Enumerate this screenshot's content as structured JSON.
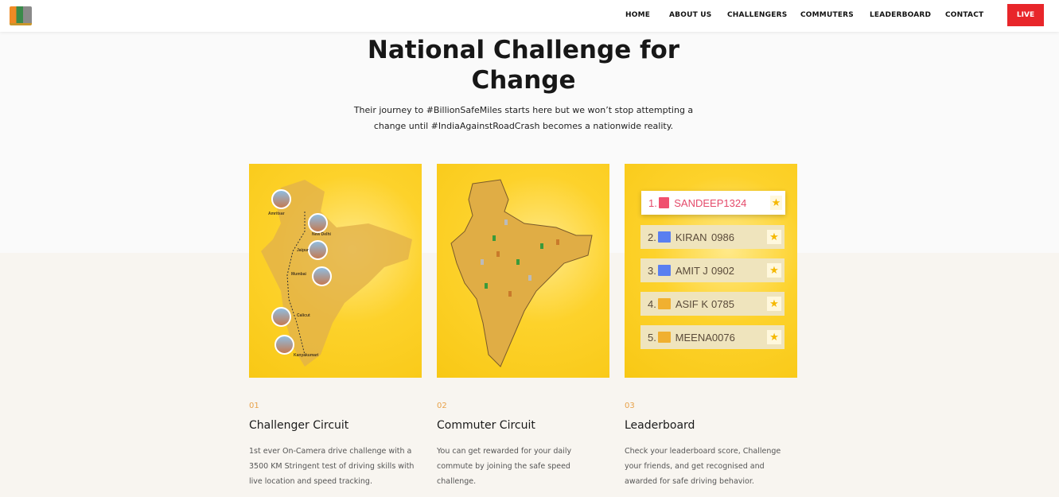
{
  "nav": {
    "items": [
      "HOME",
      "ABOUT US",
      "CHALLENGERS",
      "COMMUTERS",
      "LEADERBOARD",
      "CONTACT"
    ],
    "live": "LIVE"
  },
  "hero": {
    "title": "National Challenge for Change",
    "subtitle": "Their journey to #BillionSafeMiles starts here but we won’t stop attempting a change until #IndiaAgainstRoadCrash becomes a nationwide reality."
  },
  "route_cities": [
    "Amritsar",
    "New Delhi",
    "Jaipur",
    "Mumbai",
    "Calicut",
    "Kanyakumari"
  ],
  "leaderboard": [
    {
      "rank": "1.",
      "name": "SANDEEP",
      "score": "1324",
      "badge": "#f0506e"
    },
    {
      "rank": "2.",
      "name": "KIRAN",
      "score": "0986",
      "badge": "#5a7ff0"
    },
    {
      "rank": "3.",
      "name": "AMIT J",
      "score": "0902",
      "badge": "#5a7ff0"
    },
    {
      "rank": "4.",
      "name": "ASIF K",
      "score": "0785",
      "badge": "#f0b030"
    },
    {
      "rank": "5.",
      "name": "MEENA",
      "score": "0076",
      "badge": "#f0b030"
    }
  ],
  "features": [
    {
      "num": "01",
      "title": "Challenger Circuit",
      "desc": "1st ever On-Camera drive challenge with a 3500 KM Stringent test of driving skills with live location and speed tracking."
    },
    {
      "num": "02",
      "title": "Commuter Circuit",
      "desc": "You can get rewarded for your daily commute by joining the safe speed challenge."
    },
    {
      "num": "03",
      "title": "Leaderboard",
      "desc": "Check your leaderboard score, Challenge your friends, and get recognised and awarded for safe driving behavior."
    }
  ]
}
